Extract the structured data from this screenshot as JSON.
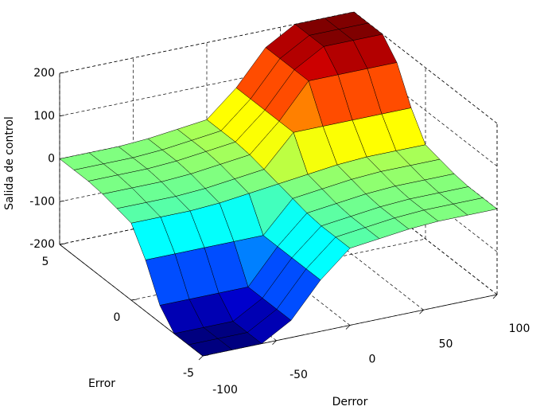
{
  "chart_data": {
    "type": "surface",
    "xlabel": "Derror",
    "ylabel": "Error",
    "zlabel": "Salida de control",
    "x": [
      -100,
      -80,
      -60,
      -40,
      -20,
      0,
      20,
      40,
      60,
      80,
      100
    ],
    "y": [
      -5,
      -4,
      -3,
      -2,
      -1,
      0,
      1,
      2,
      3,
      4,
      5
    ],
    "z": [
      [
        -200,
        -200,
        -200,
        -160,
        -80,
        -20,
        -12,
        -4,
        0,
        0,
        0
      ],
      [
        -200,
        -200,
        -200,
        -160,
        -80,
        -20,
        -12,
        -4,
        0,
        0,
        0
      ],
      [
        -200,
        -200,
        -200,
        -160,
        -80,
        -20,
        -12,
        -4,
        0,
        0,
        0
      ],
      [
        -160,
        -160,
        -160,
        -160,
        -80,
        -16,
        -8,
        0,
        4,
        4,
        4
      ],
      [
        -80,
        -80,
        -80,
        -80,
        -80,
        -8,
        0,
        8,
        12,
        12,
        12
      ],
      [
        -20,
        -20,
        -20,
        -16,
        -8,
        0,
        8,
        16,
        20,
        20,
        20
      ],
      [
        -12,
        -12,
        -12,
        -8,
        0,
        8,
        80,
        80,
        80,
        80,
        80
      ],
      [
        -4,
        -4,
        -4,
        0,
        8,
        16,
        80,
        160,
        160,
        160,
        160
      ],
      [
        0,
        0,
        0,
        4,
        12,
        20,
        80,
        160,
        200,
        200,
        200
      ],
      [
        0,
        0,
        0,
        4,
        12,
        20,
        80,
        160,
        200,
        200,
        200
      ],
      [
        0,
        0,
        0,
        4,
        12,
        20,
        80,
        160,
        200,
        200,
        200
      ]
    ],
    "xlim": [
      -100,
      100
    ],
    "ylim": [
      -5,
      5
    ],
    "zlim": [
      -200,
      200
    ],
    "xticks": [
      -100,
      -50,
      0,
      50,
      100
    ],
    "yticks": [
      -5,
      0,
      5
    ],
    "zticks": [
      -200,
      -100,
      0,
      100,
      200
    ],
    "colormap": "jet",
    "grid": true
  }
}
